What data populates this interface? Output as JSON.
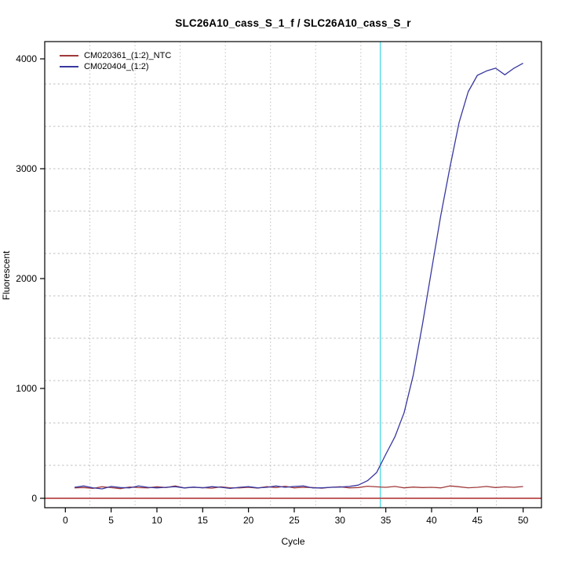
{
  "chart_data": {
    "type": "line",
    "title": "SLC26A10_cass_S_1_f / SLC26A10_cass_S_r",
    "xlabel": "Cycle",
    "ylabel": "Fluorescent",
    "x_ticks": [
      0,
      5,
      10,
      15,
      20,
      25,
      30,
      35,
      40,
      45,
      50
    ],
    "y_ticks": [
      0,
      1000,
      2000,
      3000,
      4000
    ],
    "xlim": [
      -2,
      52
    ],
    "ylim": [
      -86,
      4157
    ],
    "grid": "dotted, 11 x 11 divisions",
    "legend_position": "top-left",
    "ct_line_x": 34.4,
    "threshold_line_y": 0,
    "x": [
      1,
      2,
      3,
      4,
      5,
      6,
      7,
      8,
      9,
      10,
      11,
      12,
      13,
      14,
      15,
      16,
      17,
      18,
      19,
      20,
      21,
      22,
      23,
      24,
      25,
      26,
      27,
      28,
      29,
      30,
      31,
      32,
      33,
      34,
      35,
      36,
      37,
      38,
      39,
      40,
      41,
      42,
      43,
      44,
      45,
      46,
      47,
      48,
      49,
      50
    ],
    "series": [
      {
        "name": "CM020361_(1:2)_NTC",
        "color": "#A03A3A",
        "values": [
          95,
          98,
          90,
          105,
          97,
          88,
          103,
          97,
          95,
          105,
          98,
          112,
          95,
          100,
          97,
          92,
          104,
          96,
          95,
          100,
          93,
          106,
          97,
          110,
          95,
          100,
          98,
          92,
          100,
          105,
          95,
          98,
          110,
          104,
          100,
          108,
          95,
          102,
          98,
          100,
          95,
          113,
          105,
          96,
          100,
          108,
          98,
          104,
          100,
          107
        ]
      },
      {
        "name": "CM020404_(1:2)",
        "color": "#3838A0",
        "values": [
          100,
          112,
          96,
          86,
          108,
          98,
          95,
          112,
          100,
          95,
          100,
          106,
          94,
          102,
          95,
          106,
          100,
          90,
          100,
          106,
          95,
          100,
          112,
          100,
          108,
          112,
          95,
          95,
          100,
          102,
          108,
          120,
          160,
          235,
          400,
          560,
          780,
          1120,
          1580,
          2080,
          2570,
          3010,
          3420,
          3700,
          3850,
          3890,
          3915,
          3855,
          3915,
          3960
        ]
      }
    ],
    "colors": {
      "ct_line": "#55DCE6",
      "threshold_line": "#B84848",
      "grid": "#BFBFBF",
      "axis": "#000000",
      "background": "#FFFFFF"
    }
  }
}
